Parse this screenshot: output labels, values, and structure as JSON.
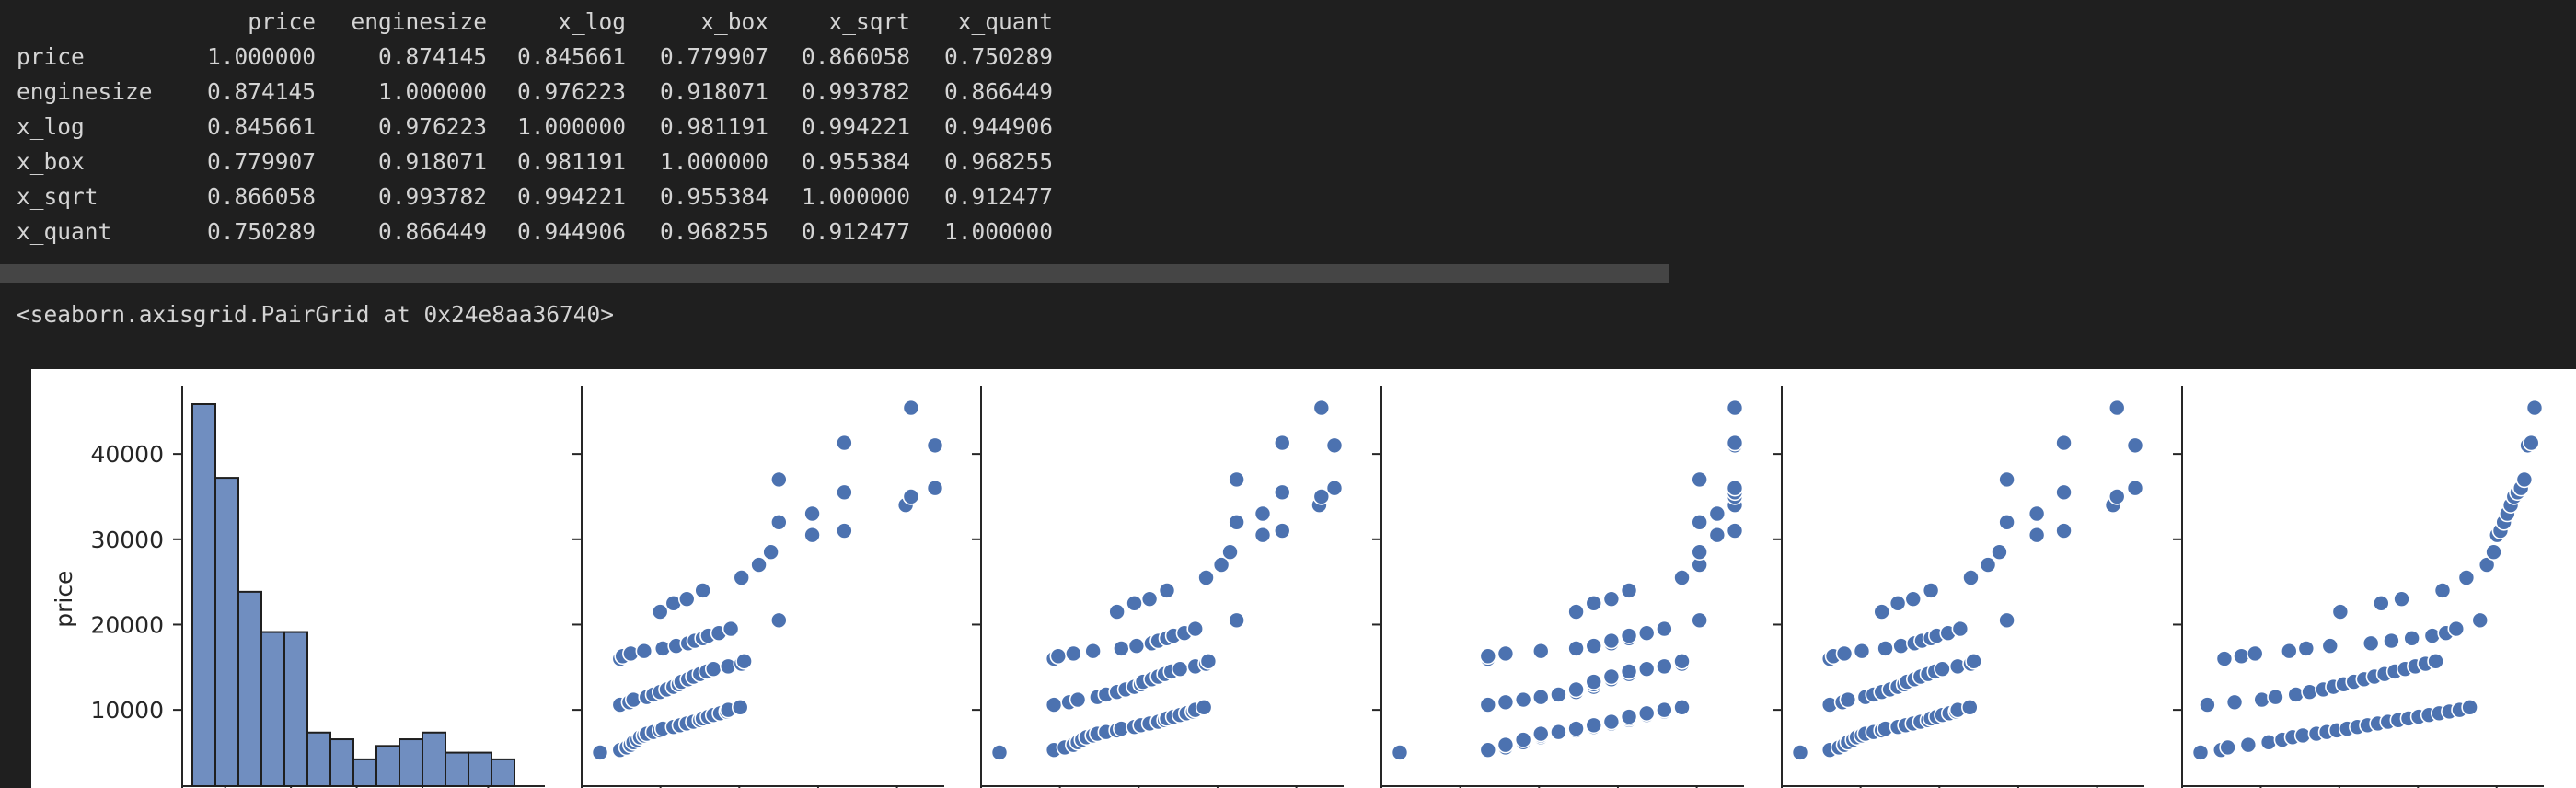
{
  "table": {
    "columns": [
      "price",
      "enginesize",
      "x_log",
      "x_box",
      "x_sqrt",
      "x_quant"
    ],
    "rows": [
      {
        "label": "price",
        "values": [
          "1.000000",
          "0.874145",
          "0.845661",
          "0.779907",
          "0.866058",
          "0.750289"
        ]
      },
      {
        "label": "enginesize",
        "values": [
          "0.874145",
          "1.000000",
          "0.976223",
          "0.918071",
          "0.993782",
          "0.866449"
        ]
      },
      {
        "label": "x_log",
        "values": [
          "0.845661",
          "0.976223",
          "1.000000",
          "0.981191",
          "0.994221",
          "0.944906"
        ]
      },
      {
        "label": "x_box",
        "values": [
          "0.779907",
          "0.918071",
          "0.981191",
          "1.000000",
          "0.955384",
          "0.968255"
        ]
      },
      {
        "label": "x_sqrt",
        "values": [
          "0.866058",
          "0.993782",
          "0.994221",
          "0.955384",
          "1.000000",
          "0.912477"
        ]
      },
      {
        "label": "x_quant",
        "values": [
          "0.750289",
          "0.866449",
          "0.944906",
          "0.968255",
          "0.912477",
          "1.000000"
        ]
      }
    ]
  },
  "output_repr": "<seaborn.axisgrid.PairGrid at 0x24e8aa36740>",
  "colors": {
    "background": "#1f1f1f",
    "text": "#d4d4d4",
    "scrollbar": "#454545",
    "plot_background": "#ffffff",
    "marker": "#4c72b0"
  },
  "chart_data": {
    "type": "scatter",
    "ylabel": "price",
    "yticks": [
      10000,
      20000,
      30000,
      40000
    ],
    "ytick_labels": [
      "10000",
      "20000",
      "30000",
      "40000"
    ],
    "ylim": [
      3000,
      48000
    ],
    "histogram": {
      "variable": "price",
      "bin_edges": [
        5000,
        7800,
        10600,
        13400,
        16200,
        19000,
        21800,
        24600,
        27400,
        30200,
        33000,
        35800,
        38600,
        41400,
        44200,
        47000
      ],
      "bin_centers": [
        6400,
        9200,
        12000,
        14800,
        17600,
        20400,
        23200,
        26000,
        28800,
        31600,
        34400,
        37200,
        40000,
        42800,
        45600
      ],
      "counts": [
        57,
        46,
        29,
        23,
        23,
        8,
        7,
        4,
        6,
        7,
        8,
        5,
        5,
        4,
        0
      ]
    },
    "price": [
      5000,
      5300,
      5600,
      5900,
      6200,
      6500,
      6800,
      7000,
      7200,
      7400,
      7600,
      7800,
      8000,
      8200,
      8400,
      8600,
      8800,
      9000,
      9200,
      9400,
      9600,
      9800,
      10000,
      10300,
      10600,
      10900,
      11200,
      11500,
      11800,
      12100,
      12400,
      12700,
      13000,
      13300,
      13600,
      13900,
      14200,
      14500,
      14800,
      15100,
      15400,
      15700,
      16000,
      16300,
      16600,
      16900,
      17200,
      17500,
      17800,
      18100,
      18400,
      18700,
      19000,
      19500,
      20500,
      21500,
      22500,
      23000,
      24000,
      25500,
      27000,
      28500,
      30500,
      31000,
      32000,
      33000,
      34000,
      35000,
      35500,
      36000,
      37000,
      41000,
      41300,
      45400
    ],
    "series": [
      {
        "name": "enginesize",
        "x": [
          75,
          90,
          95,
          98,
          100,
          103,
          105,
          108,
          110,
          115,
          120,
          122,
          130,
          135,
          140,
          145,
          150,
          152,
          156,
          160,
          165,
          170,
          171,
          180,
          90,
          97,
          100,
          110,
          115,
          120,
          125,
          130,
          134,
          136,
          141,
          145,
          150,
          155,
          160,
          171,
          181,
          183,
          90,
          92,
          98,
          108,
          122,
          132,
          141,
          146,
          152,
          156,
          164,
          173,
          209,
          120,
          130,
          140,
          152,
          181,
          194,
          203,
          234,
          258,
          209,
          234,
          304,
          308,
          258,
          326,
          209,
          326,
          258,
          308
        ]
      },
      {
        "name": "x_log",
        "x": [
          4.25,
          4.5,
          4.55,
          4.59,
          4.61,
          4.63,
          4.65,
          4.68,
          4.7,
          4.74,
          4.79,
          4.81,
          4.87,
          4.9,
          4.94,
          4.98,
          5.01,
          5.02,
          5.05,
          5.08,
          5.11,
          5.14,
          5.15,
          5.19,
          4.5,
          4.57,
          4.61,
          4.7,
          4.74,
          4.79,
          4.83,
          4.87,
          4.9,
          4.91,
          4.95,
          4.98,
          5.01,
          5.04,
          5.08,
          5.15,
          5.2,
          5.21,
          4.5,
          4.52,
          4.59,
          4.68,
          4.81,
          4.88,
          4.95,
          4.98,
          5.02,
          5.05,
          5.1,
          5.15,
          5.34,
          4.79,
          4.87,
          4.94,
          5.02,
          5.2,
          5.27,
          5.31,
          5.46,
          5.55,
          5.34,
          5.46,
          5.72,
          5.73,
          5.55,
          5.79,
          5.34,
          5.79,
          5.55,
          5.73
        ]
      },
      {
        "name": "x_box",
        "x": [
          0.545,
          0.5455,
          0.5456,
          0.5456,
          0.5457,
          0.5457,
          0.5458,
          0.5458,
          0.5458,
          0.5459,
          0.546,
          0.546,
          0.5461,
          0.5461,
          0.5462,
          0.5462,
          0.5463,
          0.5463,
          0.5463,
          0.5464,
          0.5464,
          0.5465,
          0.5465,
          0.5466,
          0.5455,
          0.5456,
          0.5457,
          0.5458,
          0.5459,
          0.546,
          0.546,
          0.5461,
          0.5461,
          0.5461,
          0.5462,
          0.5462,
          0.5463,
          0.5463,
          0.5464,
          0.5465,
          0.5466,
          0.5466,
          0.5455,
          0.5455,
          0.5456,
          0.5458,
          0.546,
          0.5461,
          0.5462,
          0.5462,
          0.5463,
          0.5463,
          0.5464,
          0.5465,
          0.5467,
          0.546,
          0.5461,
          0.5462,
          0.5463,
          0.5466,
          0.5467,
          0.5467,
          0.5468,
          0.5469,
          0.5467,
          0.5468,
          0.5469,
          0.5469,
          0.5469,
          0.5469,
          0.5467,
          0.5469,
          0.5469,
          0.5469
        ]
      },
      {
        "name": "x_sqrt",
        "x": [
          8.66,
          9.49,
          9.75,
          9.9,
          10.0,
          10.15,
          10.25,
          10.39,
          10.49,
          10.72,
          10.95,
          11.05,
          11.4,
          11.62,
          11.83,
          12.04,
          12.25,
          12.33,
          12.49,
          12.65,
          12.85,
          13.04,
          13.08,
          13.42,
          9.49,
          9.85,
          10.0,
          10.49,
          10.72,
          10.95,
          11.18,
          11.4,
          11.58,
          11.66,
          11.87,
          12.04,
          12.25,
          12.45,
          12.65,
          13.08,
          13.45,
          13.53,
          9.49,
          9.59,
          9.9,
          10.39,
          11.05,
          11.49,
          11.87,
          12.08,
          12.33,
          12.49,
          12.81,
          13.15,
          14.46,
          10.95,
          11.4,
          11.83,
          12.33,
          13.45,
          13.93,
          14.25,
          15.3,
          16.06,
          14.46,
          15.3,
          17.44,
          17.55,
          16.06,
          18.06,
          14.46,
          18.06,
          16.06,
          17.55
        ]
      },
      {
        "name": "x_quant",
        "x": [
          -2.3,
          -2.0,
          -1.9,
          -1.6,
          -1.3,
          -1.1,
          -0.95,
          -0.8,
          -0.6,
          -0.45,
          -0.3,
          -0.15,
          0.0,
          0.15,
          0.3,
          0.45,
          0.6,
          0.75,
          0.9,
          1.05,
          1.2,
          1.35,
          1.5,
          1.65,
          -2.2,
          -1.8,
          -1.4,
          -1.2,
          -0.9,
          -0.7,
          -0.5,
          -0.35,
          -0.2,
          -0.05,
          0.1,
          0.25,
          0.4,
          0.55,
          0.7,
          0.85,
          1.0,
          1.15,
          -1.95,
          -1.7,
          -1.5,
          -1.0,
          -0.75,
          -0.4,
          0.2,
          0.5,
          0.8,
          1.1,
          1.3,
          1.45,
          1.8,
          -0.25,
          0.35,
          0.65,
          1.25,
          1.6,
          1.9,
          2.0,
          2.05,
          2.1,
          2.15,
          2.2,
          2.25,
          2.3,
          2.35,
          2.4,
          2.45,
          2.5,
          2.55,
          2.6
        ]
      }
    ]
  }
}
